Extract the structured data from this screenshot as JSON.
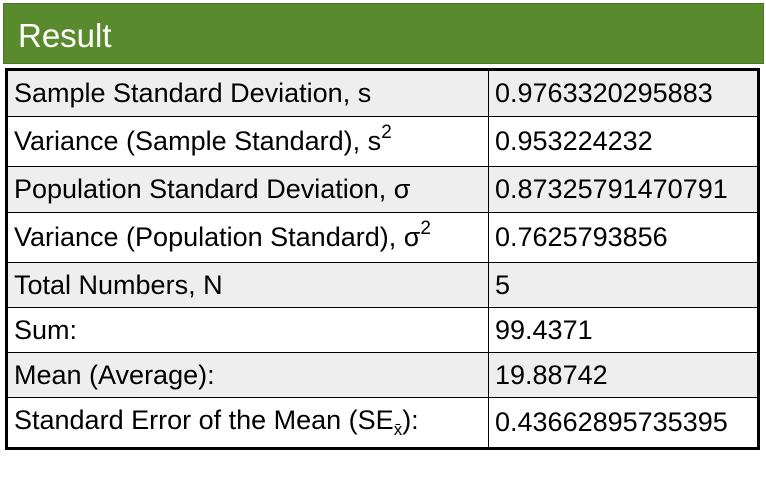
{
  "header": {
    "title": "Result",
    "color": "#5a8a2e"
  },
  "rows": [
    {
      "label": "Sample Standard Deviation, s",
      "value": "0.9763320295883"
    },
    {
      "label": "Variance (Sample Standard), s",
      "label_sup": "2",
      "value": "0.953224232"
    },
    {
      "label": "Population Standard Deviation, σ",
      "value": "0.87325791470791"
    },
    {
      "label": "Variance (Population Standard), σ",
      "label_sup": "2",
      "value": "0.7625793856"
    },
    {
      "label": "Total Numbers, N",
      "value": "5"
    },
    {
      "label": "Sum:",
      "value": "99.4371"
    },
    {
      "label": "Mean (Average):",
      "value": "19.88742"
    },
    {
      "label": "Standard Error of the Mean (SE",
      "label_sub": "x̄",
      "label_end": "):",
      "value": "0.43662895735395"
    }
  ],
  "colors": {
    "shaded_row": "#eeeeee",
    "plain_row": "#ffffff"
  }
}
